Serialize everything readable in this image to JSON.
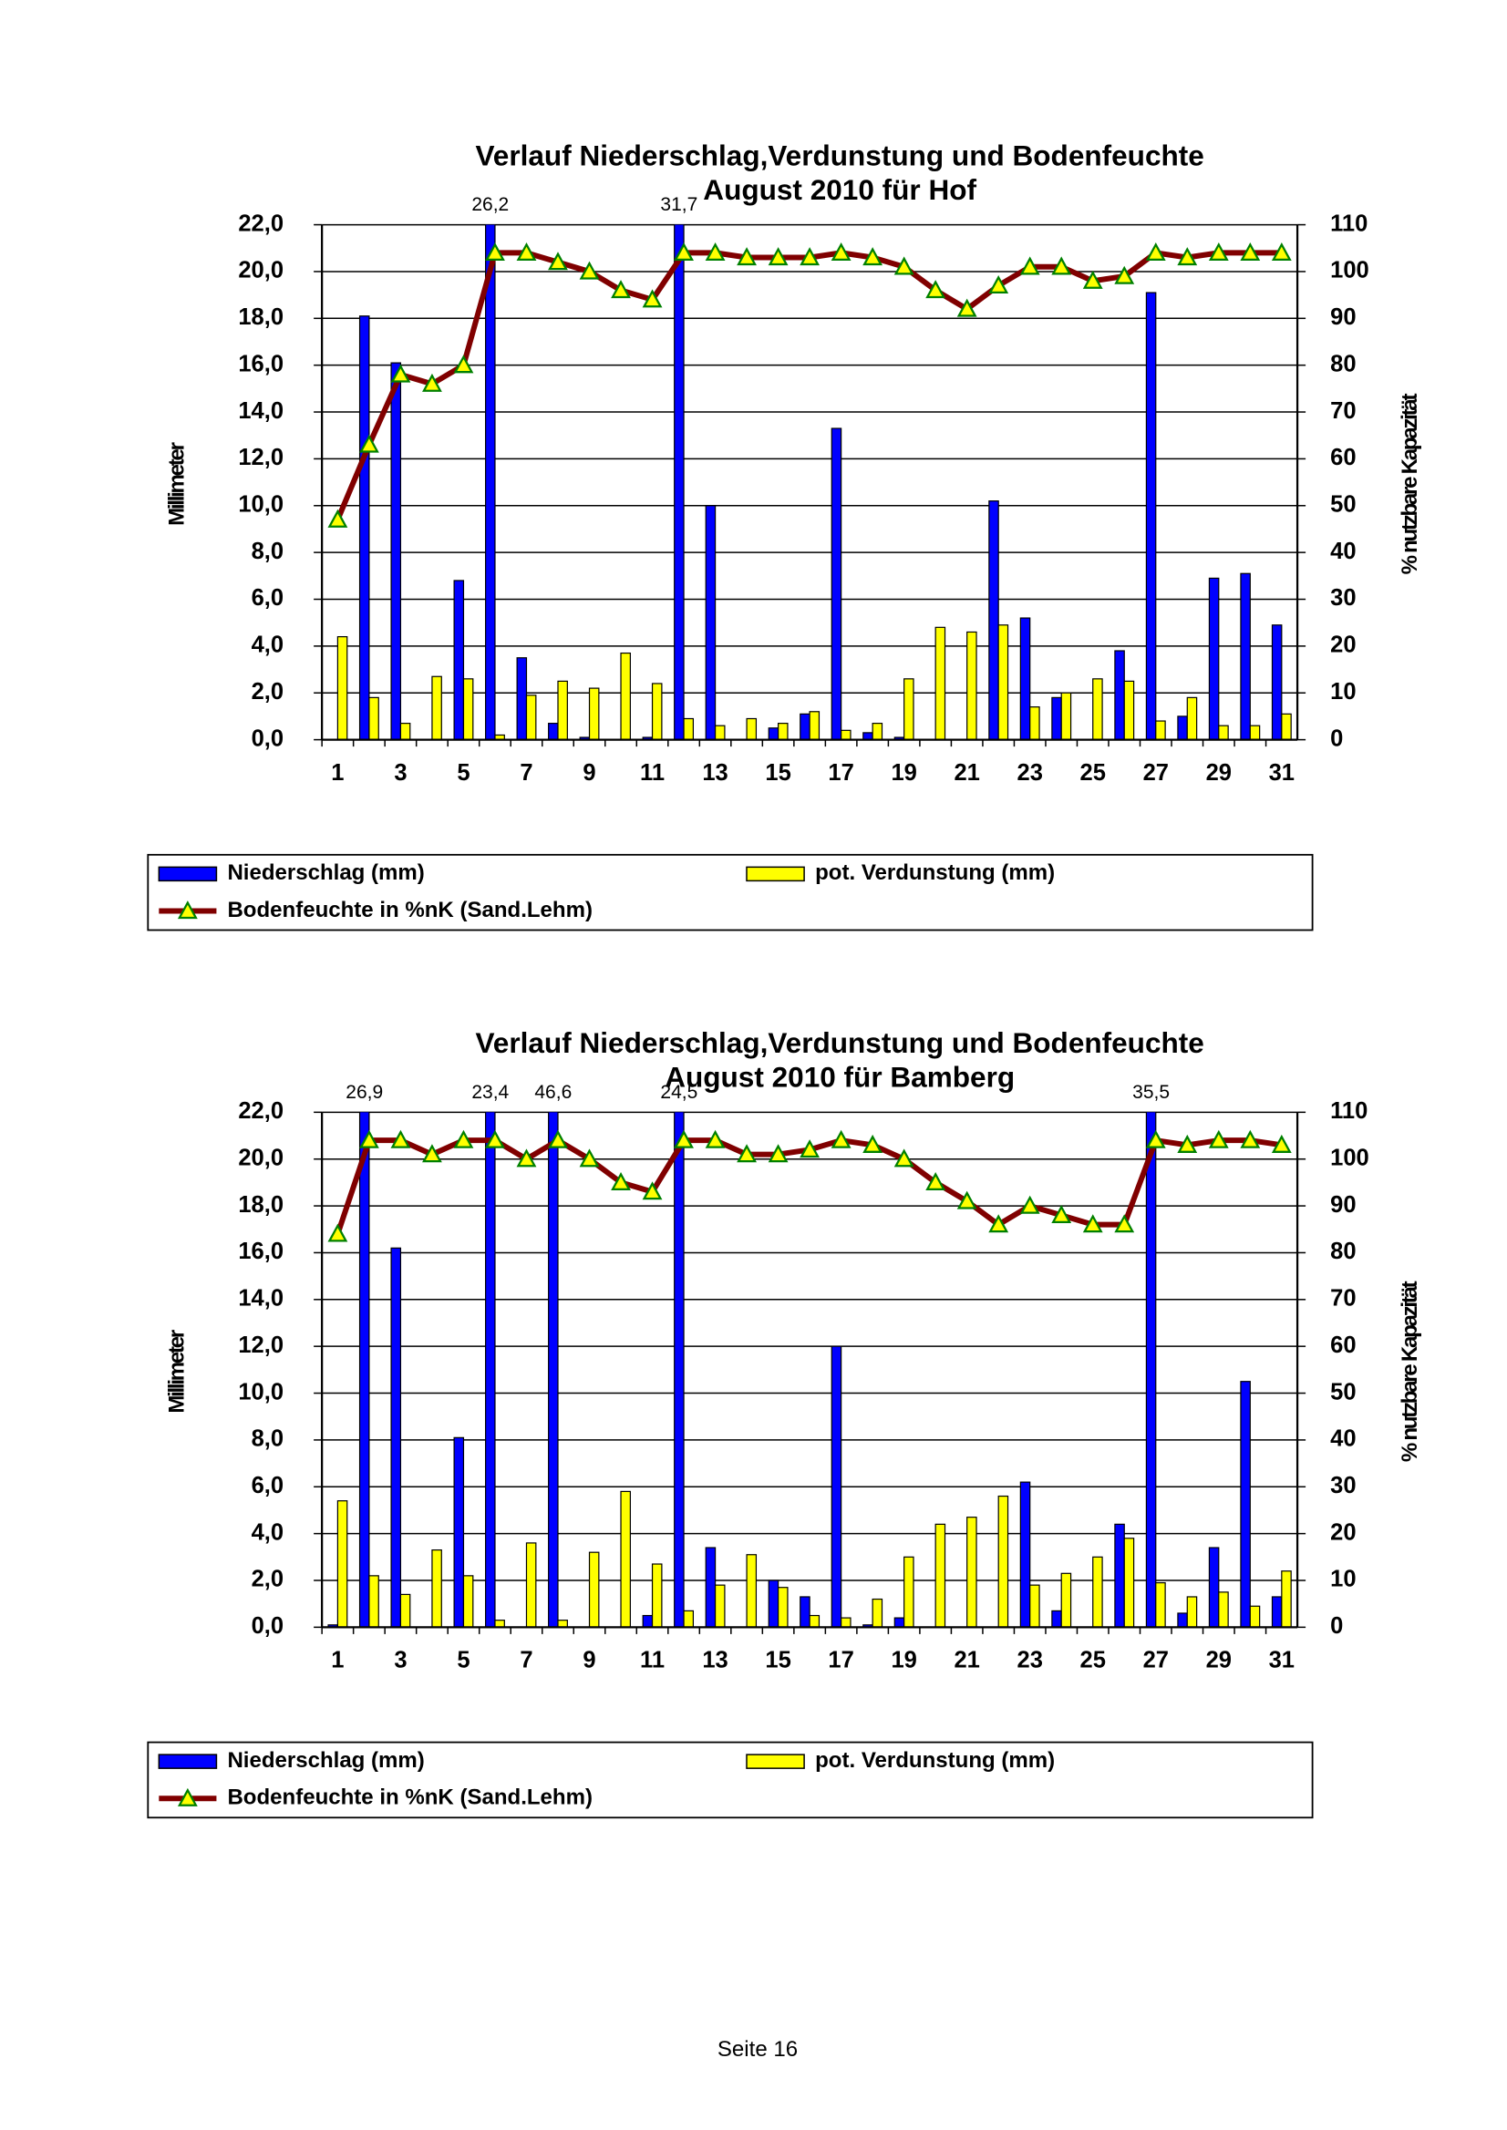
{
  "chart_data": [
    {
      "type": "bar",
      "title": "Verlauf Niederschlag,Verdunstung und Bodenfeuchte",
      "subtitle": "August 2010 für Hof",
      "y_label": "Millimeter",
      "y2_label": "% nutzbare Kapazität",
      "categories": [
        1,
        null,
        3,
        null,
        5,
        null,
        7,
        null,
        9,
        null,
        11,
        null,
        13,
        null,
        15,
        null,
        17,
        null,
        19,
        null,
        21,
        null,
        23,
        null,
        25,
        null,
        27,
        null,
        29,
        null,
        31
      ],
      "series": [
        {
          "name": "Niederschlag (mm)",
          "color": "#0000ff",
          "values": [
            0,
            18.1,
            16.1,
            0,
            6.8,
            26.2,
            3.5,
            0.7,
            0.1,
            0,
            0.1,
            31.7,
            10.0,
            0,
            0.5,
            1.1,
            13.3,
            0.3,
            0.1,
            0,
            0,
            10.2,
            5.2,
            1.8,
            0,
            3.8,
            19.1,
            1.0,
            6.9,
            7.1,
            4.9
          ],
          "value_labels": [
            null,
            null,
            null,
            null,
            null,
            "26,2",
            null,
            null,
            null,
            null,
            null,
            "31,7",
            null,
            null,
            null,
            null,
            null,
            null,
            null,
            null,
            null,
            null,
            null,
            null,
            null,
            null,
            null,
            null,
            null,
            null,
            null
          ]
        },
        {
          "name": "pot. Verdunstung (mm)",
          "color": "#ffff00",
          "values": [
            4.4,
            1.8,
            0.7,
            2.7,
            2.6,
            0.2,
            1.9,
            2.5,
            2.2,
            3.7,
            2.4,
            0.9,
            0.6,
            0.9,
            0.7,
            1.2,
            0.4,
            0.7,
            2.6,
            4.8,
            4.6,
            4.9,
            1.4,
            2.0,
            2.6,
            2.5,
            0.8,
            1.8,
            0.6,
            0.6,
            1.1
          ]
        },
        {
          "name": "Bodenfeuchte in %nK (Sand.Lehm)",
          "type": "line",
          "axis": "y2",
          "color": "#800000",
          "marker_color": "#ffff00",
          "values": [
            47,
            63,
            78,
            76,
            80,
            104,
            104,
            102,
            100,
            96,
            94,
            104,
            104,
            103,
            103,
            103,
            104,
            103,
            101,
            96,
            92,
            97,
            101,
            101,
            98,
            99,
            104,
            103,
            104,
            104,
            104
          ]
        }
      ],
      "ylim": [
        0,
        22
      ],
      "yticks": [
        {
          "value": 0,
          "label": "0,0"
        },
        {
          "value": 2,
          "label": "2,0"
        },
        {
          "value": 4,
          "label": "4,0"
        },
        {
          "value": 6,
          "label": "6,0"
        },
        {
          "value": 8,
          "label": "8,0"
        },
        {
          "value": 10,
          "label": "10,0"
        },
        {
          "value": 12,
          "label": "12,0"
        },
        {
          "value": 14,
          "label": "14,0"
        },
        {
          "value": 16,
          "label": "16,0"
        },
        {
          "value": 18,
          "label": "18,0"
        },
        {
          "value": 20,
          "label": "20,0"
        },
        {
          "value": 22,
          "label": "22,0"
        }
      ],
      "y2lim": [
        0,
        110
      ],
      "y2ticks": [
        0,
        10,
        20,
        30,
        40,
        50,
        60,
        70,
        80,
        90,
        100,
        110
      ],
      "grid": true,
      "legend": "bottom"
    },
    {
      "type": "bar",
      "title": "Verlauf Niederschlag,Verdunstung und Bodenfeuchte",
      "subtitle": "August 2010 für Bamberg",
      "y_label": "Millimeter",
      "y2_label": "% nutzbare Kapazität",
      "categories": [
        1,
        null,
        3,
        null,
        5,
        null,
        7,
        null,
        9,
        null,
        11,
        null,
        13,
        null,
        15,
        null,
        17,
        null,
        19,
        null,
        21,
        null,
        23,
        null,
        25,
        null,
        27,
        null,
        29,
        null,
        31
      ],
      "series": [
        {
          "name": "Niederschlag (mm)",
          "color": "#0000ff",
          "values": [
            0.1,
            26.9,
            16.2,
            0,
            8.1,
            23.4,
            0,
            46.6,
            0,
            0,
            0.5,
            24.5,
            3.4,
            0,
            2.0,
            1.3,
            12.0,
            0.1,
            0.4,
            0,
            0,
            0,
            6.2,
            0.7,
            0,
            4.4,
            35.5,
            0.6,
            3.4,
            10.5,
            1.3
          ],
          "value_labels": [
            null,
            "26,9",
            null,
            null,
            null,
            "23,4",
            null,
            "46,6",
            null,
            null,
            null,
            "24,5",
            null,
            null,
            null,
            null,
            null,
            null,
            null,
            null,
            null,
            null,
            null,
            null,
            null,
            null,
            "35,5",
            null,
            null,
            null,
            null
          ]
        },
        {
          "name": "pot. Verdunstung (mm)",
          "color": "#ffff00",
          "values": [
            5.4,
            2.2,
            1.4,
            3.3,
            2.2,
            0.3,
            3.6,
            0.3,
            3.2,
            5.8,
            2.7,
            0.7,
            1.8,
            3.1,
            1.7,
            0.5,
            0.4,
            1.2,
            3.0,
            4.4,
            4.7,
            5.6,
            1.8,
            2.3,
            3.0,
            3.8,
            1.9,
            1.3,
            1.5,
            0.9,
            2.4
          ]
        },
        {
          "name": "Bodenfeuchte in %nK (Sand.Lehm)",
          "type": "line",
          "axis": "y2",
          "color": "#800000",
          "marker_color": "#ffff00",
          "values": [
            84,
            104,
            104,
            101,
            104,
            104,
            100,
            104,
            100,
            95,
            93,
            104,
            104,
            101,
            101,
            102,
            104,
            103,
            100,
            95,
            91,
            86,
            90,
            88,
            86,
            86,
            104,
            103,
            104,
            104,
            103
          ]
        }
      ],
      "ylim": [
        0,
        22
      ],
      "yticks": [
        {
          "value": 0,
          "label": "0,0"
        },
        {
          "value": 2,
          "label": "2,0"
        },
        {
          "value": 4,
          "label": "4,0"
        },
        {
          "value": 6,
          "label": "6,0"
        },
        {
          "value": 8,
          "label": "8,0"
        },
        {
          "value": 10,
          "label": "10,0"
        },
        {
          "value": 12,
          "label": "12,0"
        },
        {
          "value": 14,
          "label": "14,0"
        },
        {
          "value": 16,
          "label": "16,0"
        },
        {
          "value": 18,
          "label": "18,0"
        },
        {
          "value": 20,
          "label": "20,0"
        },
        {
          "value": 22,
          "label": "22,0"
        }
      ],
      "y2lim": [
        0,
        110
      ],
      "y2ticks": [
        0,
        10,
        20,
        30,
        40,
        50,
        60,
        70,
        80,
        90,
        100,
        110
      ],
      "grid": true,
      "legend": "bottom"
    }
  ],
  "footer": "Seite 16"
}
